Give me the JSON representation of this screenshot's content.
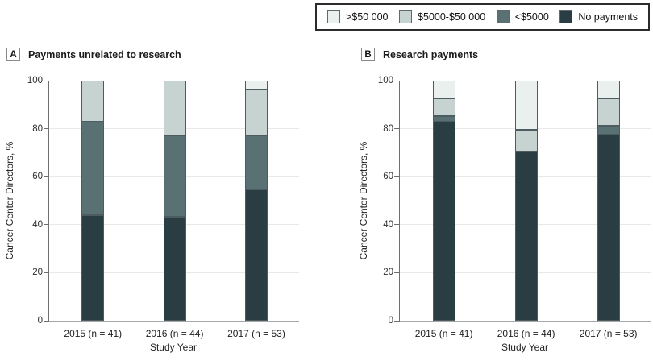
{
  "legend": {
    "items": [
      {
        "name": "gt-50000",
        "label": ">$50 000",
        "color": "#eaf0ee"
      },
      {
        "name": "5000-50000",
        "label": "$5000-$50 000",
        "color": "#c6d3d1"
      },
      {
        "name": "lt-5000",
        "label": "<$5000",
        "color": "#5a7173"
      },
      {
        "name": "no-payments",
        "label": "No payments",
        "color": "#2a3d43"
      }
    ]
  },
  "y_axis": {
    "label": "Cancer Center Directors, %",
    "ticks": [
      0,
      20,
      40,
      60,
      80,
      100
    ]
  },
  "x_axis": {
    "label": "Study Year"
  },
  "chart_data": [
    {
      "type": "bar",
      "stacked": true,
      "panel": "A",
      "title": "Payments unrelated to research",
      "categories": [
        "2015 (n = 41)",
        "2016 (n = 44)",
        "2017 (n = 53)"
      ],
      "series": [
        {
          "name": "No payments",
          "color": "#2a3d43",
          "values": [
            43.9,
            43.2,
            54.7
          ]
        },
        {
          "name": "<$5000",
          "color": "#5a7173",
          "values": [
            39.0,
            34.1,
            22.6
          ]
        },
        {
          "name": "$5000-$50 000",
          "color": "#c6d3d1",
          "values": [
            17.1,
            22.7,
            18.9
          ]
        },
        {
          "name": ">$50 000",
          "color": "#eaf0ee",
          "values": [
            0,
            0,
            3.8
          ]
        }
      ],
      "xlabel": "Study Year",
      "ylabel": "Cancer Center Directors, %",
      "ylim": [
        0,
        100
      ],
      "grid": true,
      "legend_position": "top-right-outside"
    },
    {
      "type": "bar",
      "stacked": true,
      "panel": "B",
      "title": "Research payments",
      "categories": [
        "2015 (n = 41)",
        "2016 (n = 44)",
        "2017 (n = 53)"
      ],
      "series": [
        {
          "name": "No payments",
          "color": "#2a3d43",
          "values": [
            82.9,
            70.5,
            77.4
          ]
        },
        {
          "name": "<$5000",
          "color": "#5a7173",
          "values": [
            2.4,
            0,
            3.8
          ]
        },
        {
          "name": "$5000-$50 000",
          "color": "#c6d3d1",
          "values": [
            7.3,
            9.1,
            11.3
          ]
        },
        {
          "name": ">$50 000",
          "color": "#eaf0ee",
          "values": [
            7.3,
            20.5,
            7.5
          ]
        }
      ],
      "xlabel": "Study Year",
      "ylabel": "Cancer Center Directors, %",
      "ylim": [
        0,
        100
      ],
      "grid": true,
      "legend_position": "top-right-outside"
    }
  ]
}
